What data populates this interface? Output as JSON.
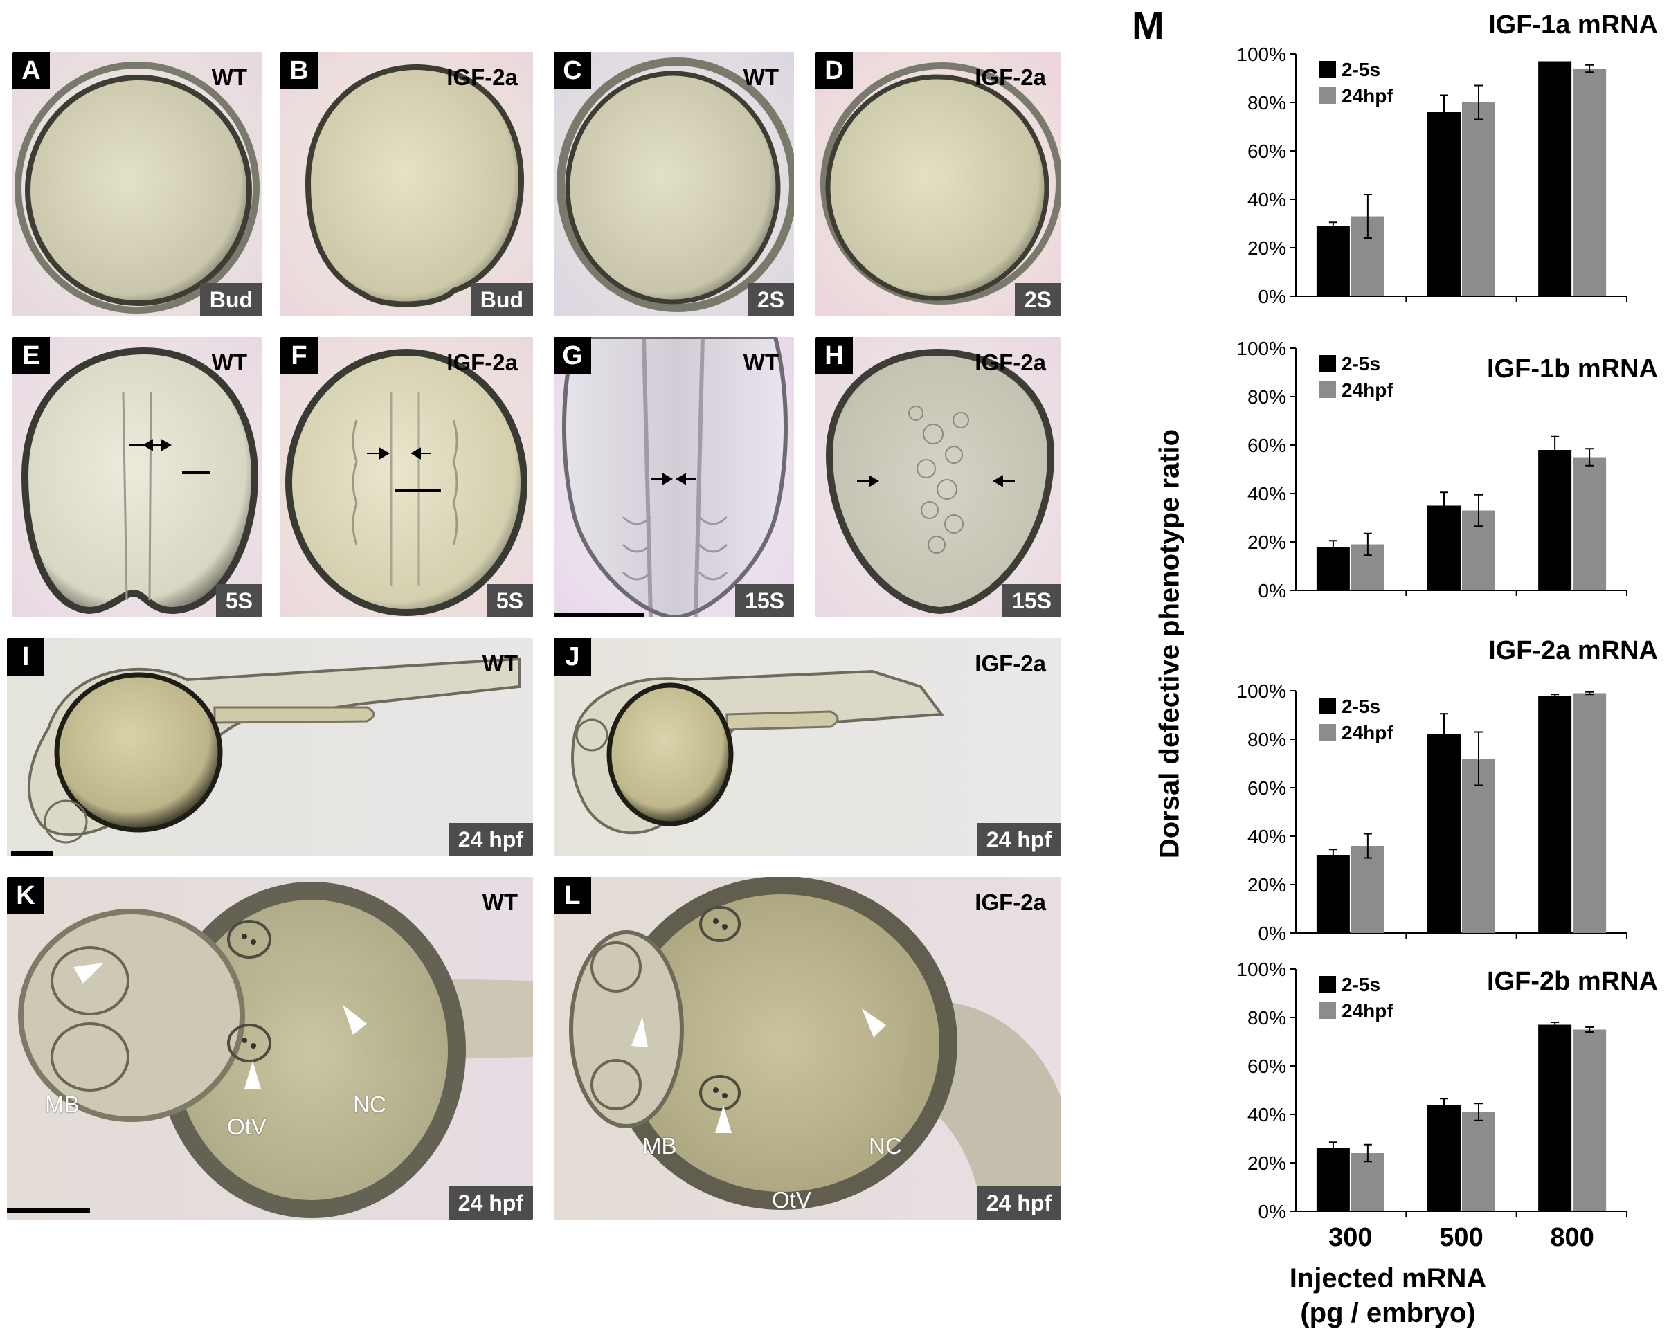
{
  "figure": {
    "panel_m_letter": "M",
    "panels": [
      {
        "letter": "A",
        "condition": "WT",
        "stage": "Bud"
      },
      {
        "letter": "B",
        "condition": "IGF-2a",
        "stage": "Bud"
      },
      {
        "letter": "C",
        "condition": "WT",
        "stage": "2S"
      },
      {
        "letter": "D",
        "condition": "IGF-2a",
        "stage": "2S"
      },
      {
        "letter": "E",
        "condition": "WT",
        "stage": "5S"
      },
      {
        "letter": "F",
        "condition": "IGF-2a",
        "stage": "5S"
      },
      {
        "letter": "G",
        "condition": "WT",
        "stage": "15S"
      },
      {
        "letter": "H",
        "condition": "IGF-2a",
        "stage": "15S"
      },
      {
        "letter": "I",
        "condition": "WT",
        "stage": "24 hpf"
      },
      {
        "letter": "J",
        "condition": "IGF-2a",
        "stage": "24 hpf"
      },
      {
        "letter": "K",
        "condition": "WT",
        "stage": "24 hpf"
      },
      {
        "letter": "L",
        "condition": "IGF-2a",
        "stage": "24 hpf"
      }
    ],
    "annotations": {
      "k": {
        "mb": "MB",
        "otv": "OtV",
        "nc": "NC"
      },
      "l": {
        "mb": "MB",
        "otv": "OtV",
        "nc": "NC"
      }
    },
    "colors": {
      "series_black": "#000000",
      "series_gray": "#8c8c8c",
      "stage_bg": "#4d4d4d"
    }
  },
  "chart_data": [
    {
      "type": "bar",
      "title": "IGF-1a mRNA",
      "categories": [
        "300",
        "500",
        "800"
      ],
      "series": [
        {
          "name": "2-5s",
          "values": [
            29,
            76,
            97
          ],
          "errors": [
            1.5,
            7,
            0
          ]
        },
        {
          "name": "24hpf",
          "values": [
            33,
            80,
            94
          ],
          "errors": [
            9,
            7,
            1.5
          ]
        }
      ],
      "ylim": [
        0,
        100
      ],
      "yticks": [
        "0%",
        "20%",
        "40%",
        "60%",
        "80%",
        "100%"
      ],
      "legend": "top-left"
    },
    {
      "type": "bar",
      "title": "IGF-1b mRNA",
      "categories": [
        "300",
        "500",
        "800"
      ],
      "series": [
        {
          "name": "2-5s",
          "values": [
            18,
            35,
            58
          ],
          "errors": [
            2.5,
            5.5,
            5.5
          ]
        },
        {
          "name": "24hpf",
          "values": [
            19,
            33,
            55
          ],
          "errors": [
            4.5,
            6.5,
            3.5
          ]
        }
      ],
      "ylim": [
        0,
        100
      ],
      "yticks": [
        "0%",
        "20%",
        "40%",
        "60%",
        "80%",
        "100%"
      ],
      "legend": "top-left"
    },
    {
      "type": "bar",
      "title": "IGF-2a mRNA",
      "categories": [
        "300",
        "500",
        "800"
      ],
      "series": [
        {
          "name": "2-5s",
          "values": [
            32,
            82,
            98
          ],
          "errors": [
            2.5,
            8.5,
            0.5
          ]
        },
        {
          "name": "24hpf",
          "values": [
            36,
            72,
            99
          ],
          "errors": [
            5,
            11,
            0.5
          ]
        }
      ],
      "ylim": [
        0,
        100
      ],
      "yticks": [
        "0%",
        "20%",
        "40%",
        "60%",
        "80%",
        "100%"
      ],
      "legend": "top-left"
    },
    {
      "type": "bar",
      "title": "IGF-2b mRNA",
      "categories": [
        "300",
        "500",
        "800"
      ],
      "series": [
        {
          "name": "2-5s",
          "values": [
            26,
            44,
            77
          ],
          "errors": [
            2.5,
            2.5,
            1
          ]
        },
        {
          "name": "24hpf",
          "values": [
            24,
            41,
            75
          ],
          "errors": [
            3.5,
            3.5,
            1
          ]
        }
      ],
      "ylim": [
        0,
        100
      ],
      "yticks": [
        "0%",
        "20%",
        "40%",
        "60%",
        "80%",
        "100%"
      ],
      "legend": "top-left"
    }
  ],
  "axes": {
    "ylabel": "Dorsal defective phenotype ratio",
    "xlabel_line1": "Injected mRNA",
    "xlabel_line2": "(pg / embryo)"
  }
}
